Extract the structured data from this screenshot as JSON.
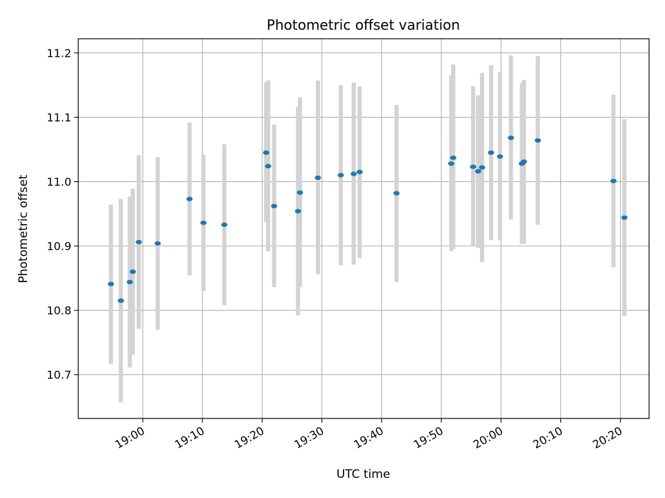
{
  "chart_data": {
    "type": "scatter",
    "title": "Photometric offset variation",
    "xlabel": "UTC time",
    "ylabel": "Photometric offset",
    "xlim": [
      "18:49:12",
      "20:24:48"
    ],
    "ylim": [
      10.632,
      11.222
    ],
    "grid": true,
    "x_ticks": [
      "19:00",
      "19:10",
      "19:20",
      "19:30",
      "19:40",
      "19:50",
      "20:00",
      "20:10",
      "20:20"
    ],
    "y_ticks": [
      "10.7",
      "10.8",
      "10.9",
      "11.0",
      "11.1",
      "11.2"
    ],
    "colors": {
      "point": "#1f77b4",
      "errorbar": "#d3d3d3",
      "grid": "#b0b0b0"
    },
    "series": [
      {
        "points": [
          {
            "t": "18:54:40",
            "y": 10.841,
            "lo": 10.717,
            "hi": 10.964
          },
          {
            "t": "18:56:20",
            "y": 10.815,
            "lo": 10.657,
            "hi": 10.973
          },
          {
            "t": "18:57:50",
            "y": 10.844,
            "lo": 10.711,
            "hi": 10.977
          },
          {
            "t": "18:58:20",
            "y": 10.86,
            "lo": 10.731,
            "hi": 10.989
          },
          {
            "t": "18:59:20",
            "y": 10.906,
            "lo": 10.771,
            "hi": 11.041
          },
          {
            "t": "19:02:30",
            "y": 10.904,
            "lo": 10.77,
            "hi": 11.038
          },
          {
            "t": "19:07:50",
            "y": 10.973,
            "lo": 10.854,
            "hi": 11.092
          },
          {
            "t": "19:10:10",
            "y": 10.936,
            "lo": 10.83,
            "hi": 11.042
          },
          {
            "t": "19:13:40",
            "y": 10.933,
            "lo": 10.808,
            "hi": 11.058
          },
          {
            "t": "19:20:40",
            "y": 11.045,
            "lo": 10.937,
            "hi": 11.154
          },
          {
            "t": "19:21:00",
            "y": 11.024,
            "lo": 10.892,
            "hi": 11.157
          },
          {
            "t": "19:22:00",
            "y": 10.962,
            "lo": 10.836,
            "hi": 11.089
          },
          {
            "t": "19:26:00",
            "y": 10.954,
            "lo": 10.792,
            "hi": 11.116
          },
          {
            "t": "19:26:20",
            "y": 10.983,
            "lo": 10.836,
            "hi": 11.131
          },
          {
            "t": "19:29:20",
            "y": 11.006,
            "lo": 10.856,
            "hi": 11.157
          },
          {
            "t": "19:33:10",
            "y": 11.01,
            "lo": 10.87,
            "hi": 11.15
          },
          {
            "t": "19:35:20",
            "y": 11.012,
            "lo": 10.871,
            "hi": 11.154
          },
          {
            "t": "19:36:20",
            "y": 11.015,
            "lo": 10.881,
            "hi": 11.148
          },
          {
            "t": "19:42:30",
            "y": 10.982,
            "lo": 10.844,
            "hi": 11.119
          },
          {
            "t": "19:51:40",
            "y": 11.028,
            "lo": 10.892,
            "hi": 11.165
          },
          {
            "t": "19:52:00",
            "y": 11.037,
            "lo": 10.895,
            "hi": 11.182
          },
          {
            "t": "19:55:20",
            "y": 11.023,
            "lo": 10.899,
            "hi": 11.148
          },
          {
            "t": "19:56:10",
            "y": 11.016,
            "lo": 10.897,
            "hi": 11.134
          },
          {
            "t": "19:56:50",
            "y": 11.022,
            "lo": 10.875,
            "hi": 11.169
          },
          {
            "t": "19:58:20",
            "y": 11.045,
            "lo": 10.909,
            "hi": 11.181
          },
          {
            "t": "19:59:50",
            "y": 11.039,
            "lo": 10.909,
            "hi": 11.17
          },
          {
            "t": "20:01:40",
            "y": 11.068,
            "lo": 10.941,
            "hi": 11.196
          },
          {
            "t": "20:03:30",
            "y": 11.028,
            "lo": 10.903,
            "hi": 11.153
          },
          {
            "t": "20:03:50",
            "y": 11.031,
            "lo": 10.903,
            "hi": 11.158
          },
          {
            "t": "20:06:10",
            "y": 11.064,
            "lo": 10.933,
            "hi": 11.195
          },
          {
            "t": "20:18:50",
            "y": 11.001,
            "lo": 10.867,
            "hi": 11.135
          },
          {
            "t": "20:20:40",
            "y": 10.944,
            "lo": 10.791,
            "hi": 11.097
          }
        ]
      }
    ]
  }
}
